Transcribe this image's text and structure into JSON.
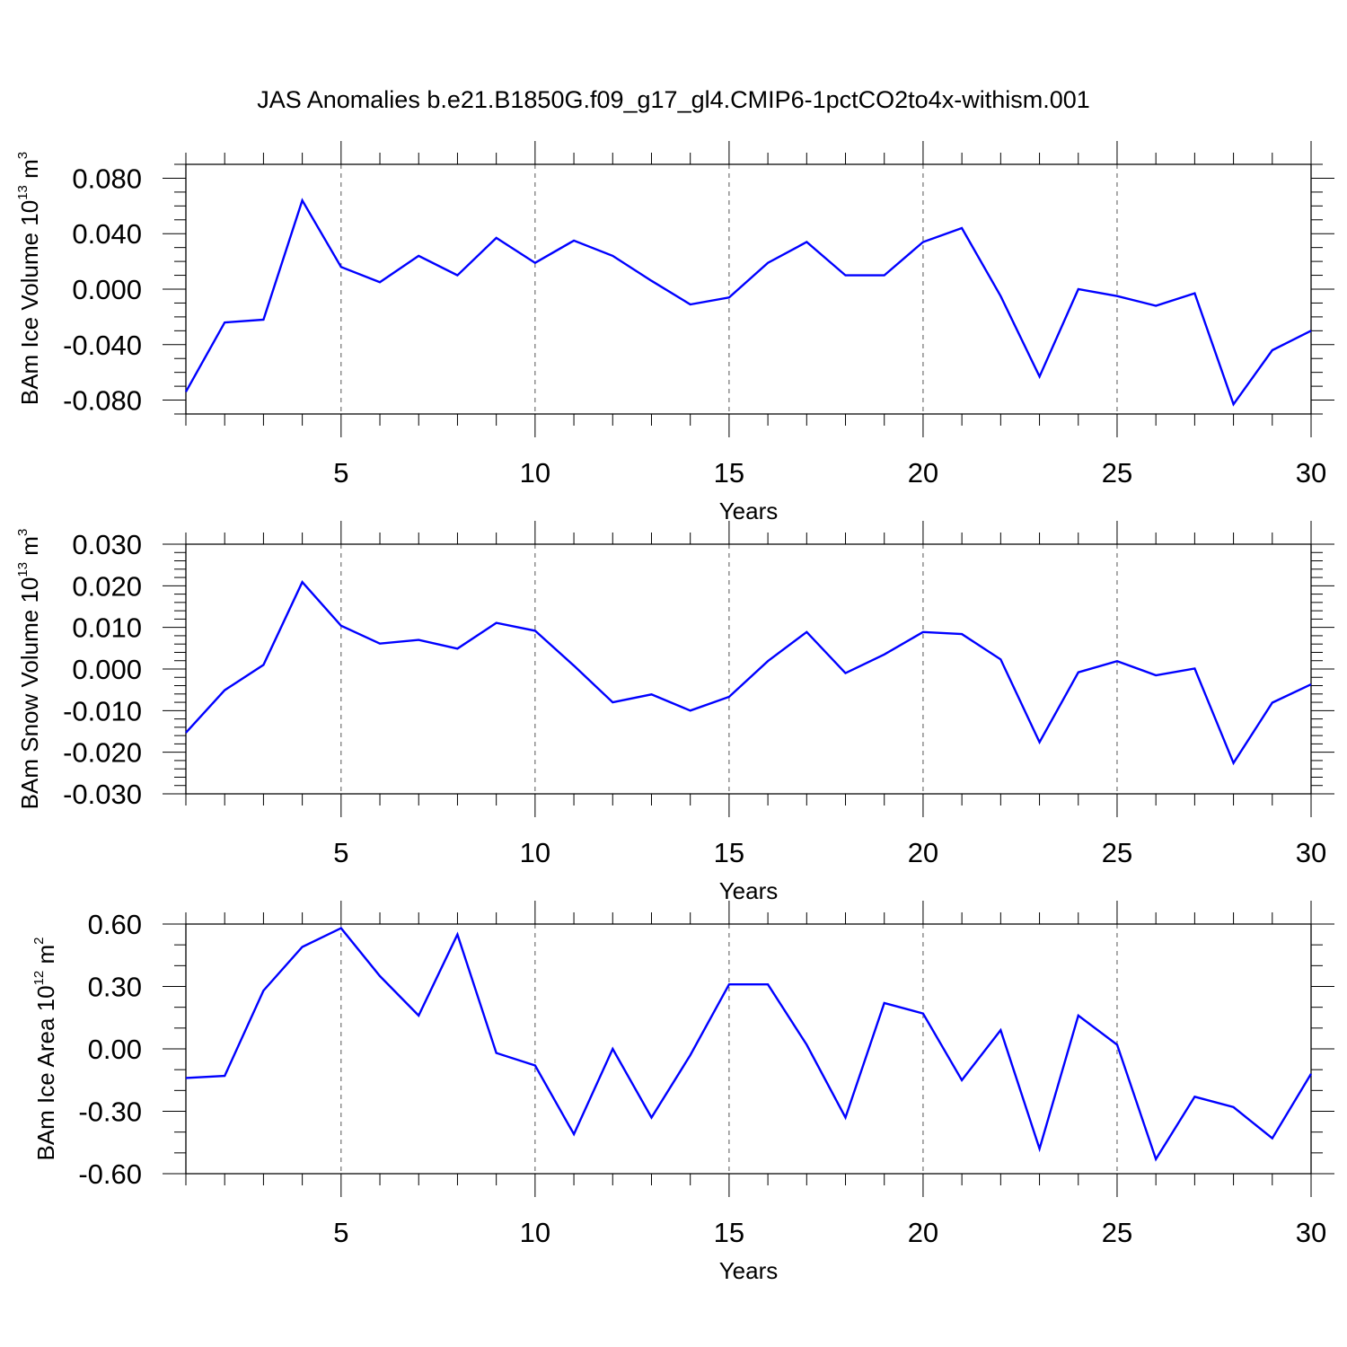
{
  "title": "JAS Anomalies b.e21.B1850G.f09_g17_gl4.CMIP6-1pctCO2to4x-withism.001",
  "colors": {
    "series": "#0000ff",
    "axis": "#000000",
    "gridline": "#555555"
  },
  "chart_data": [
    {
      "type": "line",
      "ylabel": {
        "main": "BAm Ice Volume 10",
        "sup": "13",
        "unit_pre": " m",
        "unit_sup": "3"
      },
      "xlabel": "Years",
      "xlim": [
        1,
        30
      ],
      "ylim": [
        -0.09,
        0.09
      ],
      "x_ticks": [
        5,
        10,
        15,
        20,
        25,
        30
      ],
      "x_tick_labels": [
        "5",
        "10",
        "15",
        "20",
        "25",
        "30"
      ],
      "y_ticks": [
        -0.08,
        -0.04,
        0.0,
        0.04,
        0.08
      ],
      "y_tick_labels": [
        "-0.080",
        "-0.040",
        "0.000",
        "0.040",
        "0.080"
      ],
      "y_minor_step": 0.01,
      "grid": "vertical-dashed-at-major-x",
      "x": [
        1,
        2,
        3,
        4,
        5,
        6,
        7,
        8,
        9,
        10,
        11,
        12,
        13,
        14,
        15,
        16,
        17,
        18,
        19,
        20,
        21,
        22,
        23,
        24,
        25,
        26,
        27,
        28,
        29,
        30
      ],
      "values": [
        -0.074,
        -0.024,
        -0.022,
        0.064,
        0.016,
        0.005,
        0.024,
        0.01,
        0.037,
        0.019,
        0.035,
        0.024,
        0.006,
        -0.011,
        -0.006,
        0.019,
        0.034,
        0.01,
        0.01,
        0.034,
        0.044,
        -0.005,
        -0.063,
        0.0,
        -0.005,
        -0.012,
        -0.003,
        -0.083,
        -0.044,
        -0.03
      ]
    },
    {
      "type": "line",
      "ylabel": {
        "main": "BAm Snow Volume 10",
        "sup": "13",
        "unit_pre": " m",
        "unit_sup": "3"
      },
      "xlabel": "Years",
      "xlim": [
        1,
        30
      ],
      "ylim": [
        -0.03,
        0.03
      ],
      "x_ticks": [
        5,
        10,
        15,
        20,
        25,
        30
      ],
      "x_tick_labels": [
        "5",
        "10",
        "15",
        "20",
        "25",
        "30"
      ],
      "y_ticks": [
        -0.03,
        -0.02,
        -0.01,
        0.0,
        0.01,
        0.02,
        0.03
      ],
      "y_tick_labels": [
        "-0.030",
        "-0.020",
        "-0.010",
        "0.000",
        "0.010",
        "0.020",
        "0.030"
      ],
      "y_minor_step": 0.002,
      "grid": "vertical-dashed-at-major-x",
      "x": [
        1,
        2,
        3,
        4,
        5,
        6,
        7,
        8,
        9,
        10,
        11,
        12,
        13,
        14,
        15,
        16,
        17,
        18,
        19,
        20,
        21,
        22,
        23,
        24,
        25,
        26,
        27,
        28,
        29,
        30
      ],
      "values": [
        -0.0153,
        -0.0051,
        0.001,
        0.0209,
        0.0104,
        0.0061,
        0.007,
        0.0049,
        0.0111,
        0.0092,
        0.0008,
        -0.008,
        -0.0061,
        -0.01,
        -0.0067,
        0.0019,
        0.0089,
        -0.001,
        0.0035,
        0.0089,
        0.0084,
        0.0023,
        -0.0176,
        -0.0008,
        0.0019,
        -0.0015,
        0.0001,
        -0.0226,
        -0.0081,
        -0.0037
      ]
    },
    {
      "type": "line",
      "ylabel": {
        "main": "BAm Ice Area 10",
        "sup": "12",
        "unit_pre": " m",
        "unit_sup": "2"
      },
      "xlabel": "Years",
      "xlim": [
        1,
        30
      ],
      "ylim": [
        -0.6,
        0.6
      ],
      "x_ticks": [
        5,
        10,
        15,
        20,
        25,
        30
      ],
      "x_tick_labels": [
        "5",
        "10",
        "15",
        "20",
        "25",
        "30"
      ],
      "y_ticks": [
        -0.6,
        -0.3,
        0.0,
        0.3,
        0.6
      ],
      "y_tick_labels": [
        "-0.60",
        "-0.30",
        "0.00",
        "0.30",
        "0.60"
      ],
      "y_minor_step": 0.1,
      "grid": "vertical-dashed-at-major-x",
      "x": [
        1,
        2,
        3,
        4,
        5,
        6,
        7,
        8,
        9,
        10,
        11,
        12,
        13,
        14,
        15,
        16,
        17,
        18,
        19,
        20,
        21,
        22,
        23,
        24,
        25,
        26,
        27,
        28,
        29,
        30
      ],
      "values": [
        -0.14,
        -0.13,
        0.28,
        0.49,
        0.58,
        0.35,
        0.16,
        0.55,
        -0.02,
        -0.08,
        -0.41,
        0.0,
        -0.33,
        -0.03,
        0.31,
        0.31,
        0.02,
        -0.33,
        0.22,
        0.17,
        -0.15,
        0.09,
        -0.48,
        0.16,
        0.02,
        -0.53,
        -0.23,
        -0.28,
        -0.43,
        -0.12
      ]
    }
  ]
}
